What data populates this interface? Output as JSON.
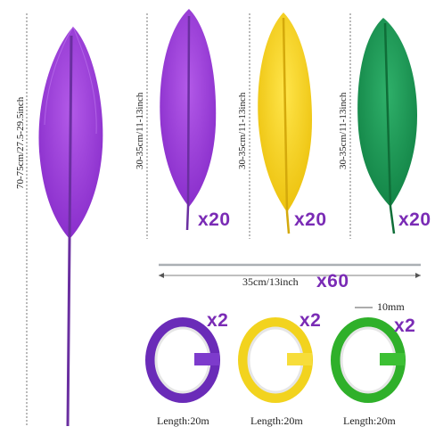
{
  "feathers": {
    "large": {
      "size_label": "70-75cm/27.5-29.5inch",
      "color": "#9b3bd6"
    },
    "small": [
      {
        "size_label": "30-35cm/11-13inch",
        "qty_label": "x20",
        "color": "#9b3bd6"
      },
      {
        "size_label": "30-35cm/11-13inch",
        "qty_label": "x20",
        "color": "#f3d21a"
      },
      {
        "size_label": "30-35cm/11-13inch",
        "qty_label": "x20",
        "color": "#1f9a55"
      }
    ]
  },
  "wire": {
    "size_label": "35cm/13inch",
    "qty_label": "x60"
  },
  "tapes": {
    "width_label": "10mm",
    "items": [
      {
        "qty_label": "x2",
        "length_label": "Length:20m",
        "color": "#6a2bb8"
      },
      {
        "qty_label": "x2",
        "length_label": "Length:20m",
        "color": "#f2d31e"
      },
      {
        "qty_label": "x2",
        "length_label": "Length:20m",
        "color": "#2fb02a"
      }
    ]
  },
  "colors": {
    "accent": "#7a2bb5"
  }
}
